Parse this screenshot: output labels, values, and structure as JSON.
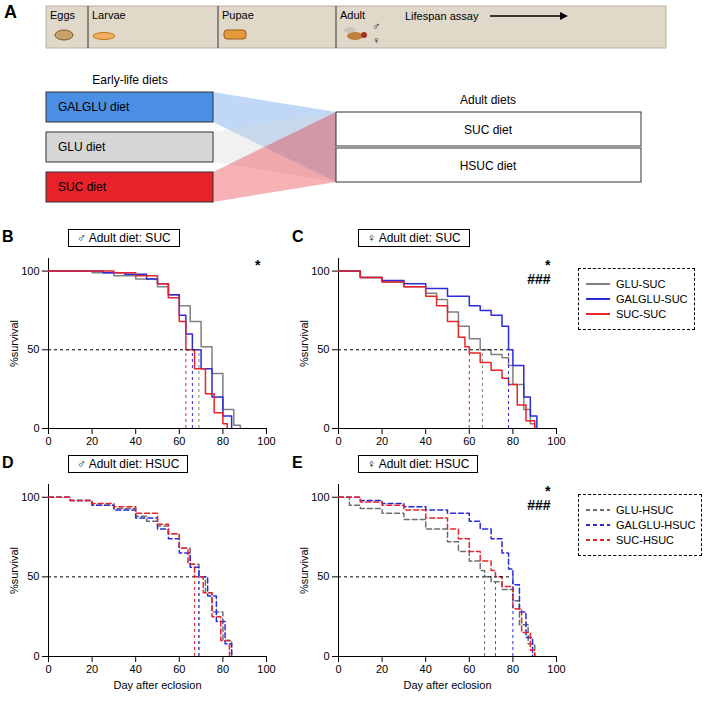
{
  "diagram": {
    "panel": "A",
    "stages": [
      "Eggs",
      "Larvae",
      "Pupae",
      "Adult"
    ],
    "sexes": [
      "♂",
      "♀"
    ],
    "assay": "Lifespan assay",
    "early_life_heading": "Early-life diets",
    "early_life_diets": [
      {
        "label": "GALGLU diet",
        "color": "#4a8fe3"
      },
      {
        "label": "GLU diet",
        "color": "#d6d6d6"
      },
      {
        "label": "SUC diet",
        "color": "#e8222a"
      }
    ],
    "adult_heading": "Adult diets",
    "adult_diets": [
      "SUC diet",
      "HSUC diet"
    ]
  },
  "chart_data": [
    {
      "type": "line",
      "panel": "B",
      "title": "♂ Adult diet: SUC",
      "y_label": "%survival",
      "xlim": [
        0,
        100
      ],
      "xticks": [
        0,
        20,
        40,
        60,
        80,
        100
      ],
      "ylim": [
        0,
        108
      ],
      "yticks": [
        0,
        50,
        100
      ],
      "median_level": 50,
      "annotations": [
        "*"
      ],
      "series": [
        {
          "name": "GLU-SUC",
          "color": "#808080",
          "line_style": "solid",
          "median": 69,
          "x": [
            0,
            20,
            30,
            40,
            50,
            55,
            60,
            65,
            70,
            75,
            80,
            85,
            88
          ],
          "values": [
            100,
            99,
            97,
            95,
            90,
            85,
            78,
            68,
            52,
            35,
            12,
            2,
            0
          ]
        },
        {
          "name": "GALGLU-SUC",
          "color": "#2b2bd9",
          "line_style": "solid",
          "median": 66,
          "x": [
            0,
            25,
            35,
            45,
            50,
            55,
            60,
            63,
            66,
            70,
            75,
            80,
            84
          ],
          "values": [
            100,
            99,
            98,
            95,
            92,
            85,
            72,
            60,
            50,
            38,
            20,
            8,
            0
          ]
        },
        {
          "name": "SUC-SUC",
          "color": "#e8242a",
          "line_style": "solid",
          "median": 63,
          "x": [
            0,
            30,
            40,
            50,
            55,
            60,
            63,
            67,
            72,
            76,
            80,
            82
          ],
          "values": [
            100,
            99,
            97,
            92,
            83,
            68,
            50,
            38,
            22,
            10,
            3,
            0
          ]
        }
      ]
    },
    {
      "type": "line",
      "panel": "C",
      "title": "♀ Adult diet: SUC",
      "y_label": "%survival",
      "xlim": [
        0,
        100
      ],
      "xticks": [
        0,
        20,
        40,
        60,
        80,
        100
      ],
      "ylim": [
        0,
        108
      ],
      "yticks": [
        0,
        50,
        100
      ],
      "median_level": 50,
      "annotations": [
        "*",
        "###"
      ],
      "legend": "right",
      "series": [
        {
          "name": "GLU-SUC",
          "color": "#808080",
          "line_style": "solid",
          "median": 66,
          "x": [
            0,
            10,
            20,
            30,
            40,
            45,
            50,
            55,
            60,
            65,
            70,
            75,
            78,
            80,
            85,
            88,
            90
          ],
          "values": [
            100,
            96,
            93,
            90,
            86,
            82,
            74,
            65,
            57,
            50,
            47,
            45,
            40,
            28,
            12,
            3,
            0
          ]
        },
        {
          "name": "GALGLU-SUC",
          "color": "#2b2bd9",
          "line_style": "solid",
          "median": 78,
          "x": [
            0,
            10,
            20,
            30,
            40,
            50,
            60,
            65,
            70,
            75,
            78,
            80,
            85,
            88,
            91
          ],
          "values": [
            100,
            96,
            94,
            92,
            89,
            84,
            78,
            75,
            72,
            65,
            50,
            40,
            20,
            8,
            0
          ]
        },
        {
          "name": "SUC-SUC",
          "color": "#e8242a",
          "line_style": "solid",
          "median": 60,
          "x": [
            0,
            10,
            20,
            30,
            40,
            45,
            50,
            55,
            58,
            60,
            65,
            70,
            75,
            78,
            82,
            86,
            90
          ],
          "values": [
            100,
            96,
            93,
            90,
            84,
            78,
            68,
            58,
            52,
            48,
            42,
            37,
            32,
            28,
            15,
            5,
            0
          ]
        }
      ]
    },
    {
      "type": "line",
      "panel": "D",
      "title": "♂ Adult diet: HSUC",
      "x_label": "Day after eclosion",
      "y_label": "%survival",
      "xlim": [
        0,
        100
      ],
      "xticks": [
        0,
        20,
        40,
        60,
        80,
        100
      ],
      "ylim": [
        0,
        108
      ],
      "yticks": [
        0,
        50,
        100
      ],
      "median_level": 50,
      "annotations": [],
      "series": [
        {
          "name": "GLU-HSUC",
          "color": "#6e6e6e",
          "line_style": "dashed",
          "median": 69,
          "x": [
            0,
            10,
            20,
            30,
            40,
            45,
            50,
            55,
            60,
            65,
            69,
            72,
            75,
            80,
            84
          ],
          "values": [
            100,
            98,
            95,
            93,
            88,
            85,
            82,
            77,
            68,
            58,
            50,
            40,
            28,
            10,
            0
          ]
        },
        {
          "name": "GALGLU-HSUC",
          "color": "#2b2bd9",
          "line_style": "dashed",
          "median": 69,
          "x": [
            0,
            10,
            20,
            30,
            40,
            50,
            55,
            60,
            65,
            69,
            73,
            77,
            81,
            84
          ],
          "values": [
            100,
            98,
            95,
            92,
            87,
            80,
            74,
            65,
            56,
            50,
            38,
            22,
            8,
            0
          ]
        },
        {
          "name": "SUC-HSUC",
          "color": "#e8242a",
          "line_style": "dashed",
          "median": 67,
          "x": [
            0,
            10,
            20,
            30,
            40,
            50,
            55,
            60,
            64,
            67,
            71,
            75,
            79,
            83
          ],
          "values": [
            100,
            98,
            96,
            94,
            90,
            83,
            77,
            68,
            58,
            50,
            40,
            25,
            10,
            0
          ]
        }
      ]
    },
    {
      "type": "line",
      "panel": "E",
      "title": "♀ Adult diet: HSUC",
      "x_label": "Day after eclosion",
      "y_label": "%survival",
      "xlim": [
        0,
        100
      ],
      "xticks": [
        0,
        20,
        40,
        60,
        80,
        100
      ],
      "ylim": [
        0,
        108
      ],
      "yticks": [
        0,
        50,
        100
      ],
      "median_level": 50,
      "annotations": [
        "*",
        "###"
      ],
      "legend": "right",
      "series": [
        {
          "name": "GLU-HSUC",
          "color": "#6e6e6e",
          "line_style": "dashed",
          "median": 67,
          "x": [
            0,
            5,
            10,
            20,
            30,
            40,
            50,
            55,
            60,
            65,
            67,
            70,
            75,
            80,
            83,
            87,
            90
          ],
          "values": [
            100,
            95,
            93,
            90,
            86,
            80,
            72,
            66,
            60,
            54,
            50,
            47,
            42,
            35,
            20,
            8,
            0
          ]
        },
        {
          "name": "GALGLU-HSUC",
          "color": "#2b2bd9",
          "line_style": "dashed",
          "median": 80,
          "x": [
            0,
            10,
            20,
            30,
            40,
            50,
            60,
            65,
            70,
            75,
            78,
            80,
            83,
            86,
            89
          ],
          "values": [
            100,
            98,
            96,
            94,
            92,
            90,
            85,
            80,
            74,
            65,
            55,
            45,
            28,
            12,
            0
          ]
        },
        {
          "name": "SUC-HSUC",
          "color": "#e8242a",
          "line_style": "dashed",
          "median": 72,
          "x": [
            0,
            10,
            20,
            30,
            40,
            50,
            55,
            60,
            65,
            70,
            72,
            75,
            80,
            84,
            88,
            90
          ],
          "values": [
            100,
            97,
            95,
            92,
            87,
            80,
            74,
            66,
            60,
            54,
            50,
            44,
            30,
            15,
            4,
            0
          ]
        }
      ]
    }
  ]
}
